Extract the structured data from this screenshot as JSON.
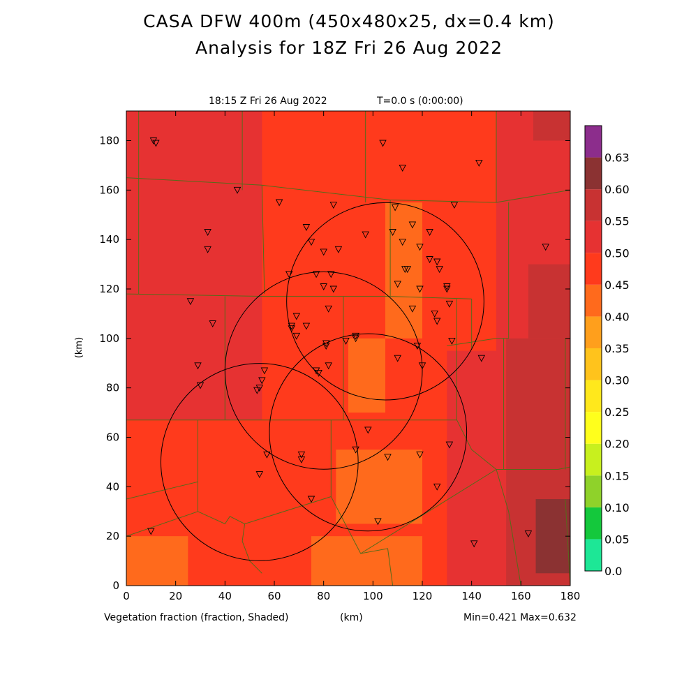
{
  "header": {
    "title_line1": "CASA DFW 400m (450x480x25, dx=0.4 km)",
    "title_line2": "Analysis for 18Z Fri 26 Aug 2022",
    "valid_time": "18:15 Z Fri 26 Aug 2022",
    "elapsed": "T=0.0 s (0:00:00)"
  },
  "footer": {
    "field_label": "Vegetation fraction (fraction, Shaded)",
    "x_unit": "(km)",
    "minmax": "Min=0.421 Max=0.632"
  },
  "chart_data": {
    "type": "heatmap",
    "title": "Vegetation fraction (fraction, Shaded)",
    "xlabel": "(km)",
    "ylabel": "(km)",
    "xlim": [
      0,
      180
    ],
    "ylim": [
      0,
      192
    ],
    "x_ticks": [
      "0",
      "20",
      "40",
      "60",
      "80",
      "100",
      "120",
      "140",
      "160",
      "180"
    ],
    "y_ticks": [
      "0",
      "20",
      "40",
      "60",
      "80",
      "100",
      "120",
      "140",
      "160",
      "180"
    ],
    "min": 0.421,
    "max": 0.632,
    "colorbar": {
      "levels": [
        "0.0",
        "0.05",
        "0.10",
        "0.15",
        "0.20",
        "0.25",
        "0.30",
        "0.35",
        "0.40",
        "0.45",
        "0.50",
        "0.55",
        "0.60",
        "0.63"
      ],
      "colors": [
        "#1de796",
        "#14c83c",
        "#8fd22a",
        "#c8f01e",
        "#ffff1c",
        "#ffe81c",
        "#ffc31c",
        "#ff9f1c",
        "#ff6a1c",
        "#ff3a1c",
        "#e63232",
        "#c83232",
        "#8b3232",
        "#8c2d8c"
      ]
    },
    "regions": [
      {
        "level": 0.48,
        "x": [
          0,
          180
        ],
        "y": [
          0,
          192
        ]
      },
      {
        "level": 0.52,
        "x": [
          0,
          55
        ],
        "y": [
          67,
          192
        ]
      },
      {
        "level": 0.52,
        "x": [
          0,
          35
        ],
        "y": [
          120,
          192
        ]
      },
      {
        "level": 0.52,
        "x": [
          150,
          180
        ],
        "y": [
          0,
          192
        ]
      },
      {
        "level": 0.52,
        "x": [
          130,
          152
        ],
        "y": [
          0,
          95
        ]
      },
      {
        "level": 0.57,
        "x": [
          154,
          180
        ],
        "y": [
          0,
          100
        ]
      },
      {
        "level": 0.57,
        "x": [
          163,
          180
        ],
        "y": [
          100,
          130
        ]
      },
      {
        "level": 0.57,
        "x": [
          165,
          180
        ],
        "y": [
          180,
          192
        ]
      },
      {
        "level": 0.62,
        "x": [
          166,
          180
        ],
        "y": [
          5,
          35
        ]
      },
      {
        "level": 0.44,
        "x": [
          0,
          25
        ],
        "y": [
          0,
          20
        ]
      },
      {
        "level": 0.44,
        "x": [
          75,
          120
        ],
        "y": [
          0,
          20
        ]
      },
      {
        "level": 0.44,
        "x": [
          85,
          120
        ],
        "y": [
          25,
          55
        ]
      },
      {
        "level": 0.44,
        "x": [
          105,
          120
        ],
        "y": [
          100,
          155
        ]
      },
      {
        "level": 0.44,
        "x": [
          90,
          105
        ],
        "y": [
          70,
          100
        ]
      }
    ],
    "radar_rings": [
      {
        "cx": 54,
        "cy": 50,
        "r": 40
      },
      {
        "cx": 80,
        "cy": 87,
        "r": 40
      },
      {
        "cx": 98,
        "cy": 62,
        "r": 40
      },
      {
        "cx": 105,
        "cy": 115,
        "r": 40
      }
    ],
    "stations": [
      [
        11,
        180
      ],
      [
        12,
        179
      ],
      [
        45,
        160
      ],
      [
        33,
        143
      ],
      [
        33,
        136
      ],
      [
        62,
        155
      ],
      [
        73,
        145
      ],
      [
        84,
        154
      ],
      [
        104,
        179
      ],
      [
        112,
        169
      ],
      [
        143,
        171
      ],
      [
        109,
        153
      ],
      [
        133,
        154
      ],
      [
        116,
        146
      ],
      [
        108,
        143
      ],
      [
        97,
        142
      ],
      [
        123,
        143
      ],
      [
        75,
        139
      ],
      [
        80,
        135
      ],
      [
        86,
        136
      ],
      [
        112,
        139
      ],
      [
        119,
        137
      ],
      [
        123,
        132
      ],
      [
        126,
        131
      ],
      [
        113,
        128
      ],
      [
        127,
        128
      ],
      [
        66,
        126
      ],
      [
        77,
        126
      ],
      [
        83,
        126
      ],
      [
        114,
        128
      ],
      [
        110,
        122
      ],
      [
        130,
        121
      ],
      [
        130,
        120
      ],
      [
        80,
        121
      ],
      [
        84,
        120
      ],
      [
        119,
        120
      ],
      [
        26,
        115
      ],
      [
        35,
        106
      ],
      [
        69,
        109
      ],
      [
        82,
        112
      ],
      [
        116,
        112
      ],
      [
        125,
        110
      ],
      [
        131,
        114
      ],
      [
        126,
        107
      ],
      [
        67,
        105
      ],
      [
        73,
        105
      ],
      [
        69,
        101
      ],
      [
        67,
        104
      ],
      [
        89,
        99
      ],
      [
        93,
        100
      ],
      [
        93,
        101
      ],
      [
        81,
        98
      ],
      [
        81,
        97
      ],
      [
        118,
        97
      ],
      [
        132,
        99
      ],
      [
        144,
        92
      ],
      [
        29,
        89
      ],
      [
        30,
        81
      ],
      [
        78,
        86
      ],
      [
        56,
        87
      ],
      [
        55,
        83
      ],
      [
        54,
        80
      ],
      [
        53,
        79
      ],
      [
        77,
        87
      ],
      [
        82,
        89
      ],
      [
        110,
        92
      ],
      [
        120,
        89
      ],
      [
        98,
        63
      ],
      [
        57,
        53
      ],
      [
        71,
        53
      ],
      [
        71,
        51
      ],
      [
        93,
        55
      ],
      [
        106,
        52
      ],
      [
        119,
        53
      ],
      [
        131,
        57
      ],
      [
        54,
        45
      ],
      [
        126,
        40
      ],
      [
        75,
        35
      ],
      [
        10,
        22
      ],
      [
        102,
        26
      ],
      [
        141,
        17
      ],
      [
        163,
        21
      ],
      [
        170,
        137
      ]
    ],
    "boundaries": [
      [
        [
          5,
          192
        ],
        [
          5,
          165
        ]
      ],
      [
        [
          47,
          192
        ],
        [
          47,
          160
        ]
      ],
      [
        [
          97,
          192
        ],
        [
          97,
          155
        ]
      ],
      [
        [
          150,
          192
        ],
        [
          150,
          155
        ]
      ],
      [
        [
          0,
          165
        ],
        [
          55,
          162
        ],
        [
          107,
          156
        ],
        [
          150,
          155
        ],
        [
          180,
          160
        ]
      ],
      [
        [
          5,
          165
        ],
        [
          5,
          118
        ]
      ],
      [
        [
          55,
          162
        ],
        [
          56,
          118
        ]
      ],
      [
        [
          107,
          156
        ],
        [
          107,
          117
        ]
      ],
      [
        [
          0,
          118
        ],
        [
          56,
          117
        ],
        [
          107,
          117
        ],
        [
          140,
          116
        ]
      ],
      [
        [
          155,
          155
        ],
        [
          155,
          100
        ],
        [
          150,
          100
        ],
        [
          130,
          97
        ]
      ],
      [
        [
          40,
          117
        ],
        [
          40,
          67
        ]
      ],
      [
        [
          88,
          117
        ],
        [
          88,
          67
        ]
      ],
      [
        [
          134,
          116
        ],
        [
          134,
          67
        ]
      ],
      [
        [
          140,
          116
        ],
        [
          140,
          96
        ]
      ],
      [
        [
          0,
          67
        ],
        [
          40,
          67
        ],
        [
          88,
          67
        ],
        [
          134,
          67
        ]
      ],
      [
        [
          29,
          67
        ],
        [
          29,
          30
        ]
      ],
      [
        [
          0,
          35
        ],
        [
          29,
          42
        ]
      ],
      [
        [
          0,
          20
        ],
        [
          29,
          30
        ]
      ],
      [
        [
          29,
          30
        ],
        [
          40,
          25
        ],
        [
          42,
          28
        ],
        [
          48,
          25
        ],
        [
          47,
          18
        ],
        [
          50,
          10
        ],
        [
          55,
          5
        ]
      ],
      [
        [
          48,
          25
        ],
        [
          83,
          36
        ]
      ],
      [
        [
          83,
          36
        ],
        [
          83,
          67
        ]
      ],
      [
        [
          83,
          36
        ],
        [
          95,
          13
        ],
        [
          106,
          15
        ],
        [
          108,
          0
        ]
      ],
      [
        [
          95,
          13
        ],
        [
          150,
          47
        ]
      ],
      [
        [
          134,
          67
        ],
        [
          140,
          55
        ],
        [
          150,
          47
        ]
      ],
      [
        [
          150,
          47
        ],
        [
          175,
          47
        ],
        [
          180,
          48
        ]
      ],
      [
        [
          150,
          47
        ],
        [
          155,
          30
        ],
        [
          160,
          0
        ]
      ],
      [
        [
          153,
          100
        ],
        [
          153,
          47
        ]
      ],
      [
        [
          178,
          100
        ],
        [
          178,
          47
        ]
      ],
      [
        [
          178,
          35
        ],
        [
          180,
          0
        ]
      ]
    ]
  }
}
